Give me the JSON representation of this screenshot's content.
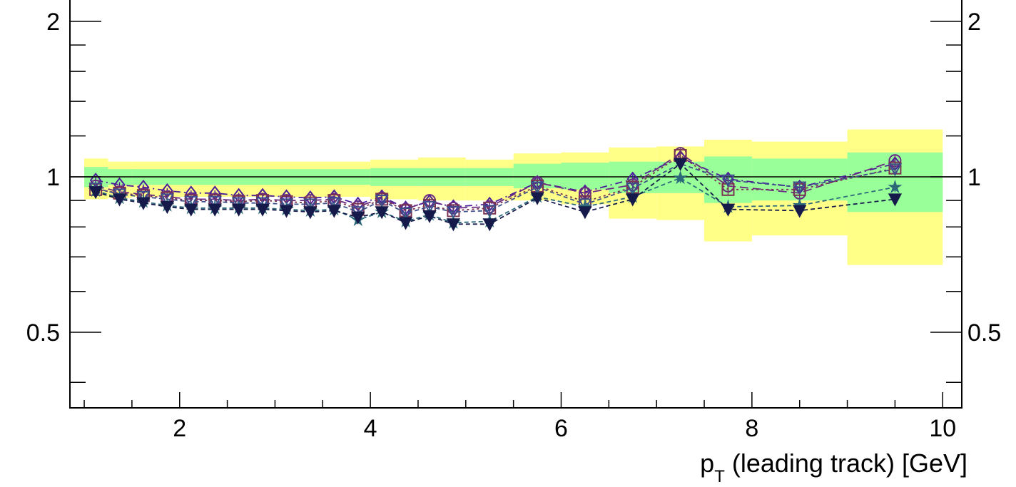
{
  "chart_data": {
    "type": "scatter",
    "title": "",
    "xlabel": "p",
    "xlabel_sub": "T",
    "xlabel_rest": " (leading track) [GeV]",
    "ylabel": "",
    "xlim": [
      0.85,
      10.2
    ],
    "ylim": [
      0.357,
      2.2
    ],
    "y_log": true,
    "reference_line": 1.0,
    "x_ticks": [
      2,
      4,
      6,
      8,
      10
    ],
    "x_tick_labels": [
      "2",
      "4",
      "6",
      "8",
      "10"
    ],
    "y_ticks": [
      0.5,
      1,
      2
    ],
    "y_tick_labels": [
      "0.5",
      "1",
      "2"
    ],
    "bands": [
      {
        "name_hint": "outer",
        "color": "#ffff88",
        "bins": [
          {
            "x0": 1.0,
            "x1": 1.25,
            "lo": 0.905,
            "hi": 1.085
          },
          {
            "x0": 1.25,
            "x1": 1.5,
            "lo": 0.91,
            "hi": 1.07
          },
          {
            "x0": 1.5,
            "x1": 4.0,
            "lo": 0.915,
            "hi": 1.07
          },
          {
            "x0": 4.0,
            "x1": 4.5,
            "lo": 0.905,
            "hi": 1.08
          },
          {
            "x0": 4.5,
            "x1": 5.0,
            "lo": 0.9,
            "hi": 1.09
          },
          {
            "x0": 5.0,
            "x1": 5.5,
            "lo": 0.9,
            "hi": 1.08
          },
          {
            "x0": 5.5,
            "x1": 6.0,
            "lo": 0.9,
            "hi": 1.11
          },
          {
            "x0": 6.0,
            "x1": 6.5,
            "lo": 0.885,
            "hi": 1.115
          },
          {
            "x0": 6.5,
            "x1": 7.0,
            "lo": 0.83,
            "hi": 1.14
          },
          {
            "x0": 7.0,
            "x1": 7.5,
            "lo": 0.825,
            "hi": 1.145
          },
          {
            "x0": 7.5,
            "x1": 8.0,
            "lo": 0.75,
            "hi": 1.18
          },
          {
            "x0": 8.0,
            "x1": 9.0,
            "lo": 0.77,
            "hi": 1.17
          },
          {
            "x0": 9.0,
            "x1": 10.0,
            "lo": 0.675,
            "hi": 1.235
          }
        ]
      },
      {
        "name_hint": "inner",
        "color": "#99ff99",
        "bins": [
          {
            "x0": 1.0,
            "x1": 1.25,
            "lo": 0.955,
            "hi": 1.045
          },
          {
            "x0": 1.25,
            "x1": 1.5,
            "lo": 0.965,
            "hi": 1.035
          },
          {
            "x0": 1.5,
            "x1": 4.0,
            "lo": 0.965,
            "hi": 1.035
          },
          {
            "x0": 4.0,
            "x1": 5.0,
            "lo": 0.96,
            "hi": 1.04
          },
          {
            "x0": 5.0,
            "x1": 5.5,
            "lo": 0.96,
            "hi": 1.04
          },
          {
            "x0": 5.5,
            "x1": 6.0,
            "lo": 0.95,
            "hi": 1.06
          },
          {
            "x0": 6.0,
            "x1": 6.5,
            "lo": 0.945,
            "hi": 1.065
          },
          {
            "x0": 6.5,
            "x1": 7.5,
            "lo": 0.93,
            "hi": 1.07
          },
          {
            "x0": 7.5,
            "x1": 8.0,
            "lo": 0.89,
            "hi": 1.095
          },
          {
            "x0": 8.0,
            "x1": 9.0,
            "lo": 0.9,
            "hi": 1.085
          },
          {
            "x0": 9.0,
            "x1": 10.0,
            "lo": 0.855,
            "hi": 1.115
          }
        ]
      }
    ],
    "x": [
      1.12,
      1.37,
      1.62,
      1.87,
      2.12,
      2.37,
      2.62,
      2.87,
      3.12,
      3.37,
      3.62,
      3.87,
      4.12,
      4.37,
      4.62,
      4.87,
      5.25,
      5.75,
      6.25,
      6.75,
      7.25,
      7.75,
      8.5,
      9.5
    ],
    "series": [
      {
        "marker": "open-diamond",
        "color": "#4b1d9a",
        "dash": "10,5,2,5",
        "values": [
          0.985,
          0.965,
          0.955,
          0.94,
          0.93,
          0.93,
          0.92,
          0.92,
          0.915,
          0.91,
          0.915,
          0.885,
          0.915,
          0.87,
          0.895,
          0.875,
          0.885,
          0.975,
          0.935,
          0.99,
          1.09,
          0.99,
          0.955,
          1.06
        ]
      },
      {
        "marker": "open-circle",
        "color": "#6a2a80",
        "dash": "12,6",
        "values": [
          0.96,
          0.935,
          0.925,
          0.915,
          0.905,
          0.905,
          0.9,
          0.905,
          0.9,
          0.9,
          0.905,
          0.875,
          0.91,
          0.865,
          0.9,
          0.87,
          0.875,
          0.975,
          0.93,
          0.965,
          1.11,
          0.96,
          0.93,
          1.075
        ]
      },
      {
        "marker": "open-square",
        "color": "#7a3350",
        "dash": "3,4",
        "values": [
          0.945,
          0.93,
          0.92,
          0.91,
          0.9,
          0.9,
          0.895,
          0.9,
          0.895,
          0.89,
          0.9,
          0.865,
          0.905,
          0.86,
          0.88,
          0.86,
          0.87,
          0.96,
          0.895,
          0.955,
          1.1,
          0.945,
          0.945,
          1.04
        ]
      },
      {
        "marker": "open-triangle-down",
        "color": "#3d4f8a",
        "dash": "6,4",
        "values": [
          0.95,
          0.925,
          0.915,
          0.905,
          0.895,
          0.895,
          0.89,
          0.89,
          0.885,
          0.885,
          0.89,
          0.855,
          0.9,
          0.85,
          0.875,
          0.855,
          0.86,
          0.955,
          0.885,
          0.95,
          1.06,
          0.985,
          0.955,
          1.035
        ]
      },
      {
        "marker": "star",
        "color": "#2c6a7a",
        "dash": "6,4",
        "values": [
          0.94,
          0.91,
          0.895,
          0.88,
          0.87,
          0.87,
          0.87,
          0.87,
          0.865,
          0.86,
          0.865,
          0.825,
          0.855,
          0.82,
          0.845,
          0.815,
          0.82,
          0.915,
          0.875,
          0.915,
          0.995,
          0.875,
          0.88,
          0.955
        ]
      },
      {
        "marker": "filled-triangle-down",
        "color": "#151a4a",
        "dash": "6,4",
        "values": [
          0.935,
          0.905,
          0.89,
          0.875,
          0.865,
          0.865,
          0.865,
          0.865,
          0.86,
          0.855,
          0.86,
          0.835,
          0.855,
          0.815,
          0.84,
          0.81,
          0.81,
          0.91,
          0.855,
          0.905,
          1.06,
          0.865,
          0.86,
          0.905
        ]
      }
    ],
    "grid": false,
    "legend": "none"
  }
}
